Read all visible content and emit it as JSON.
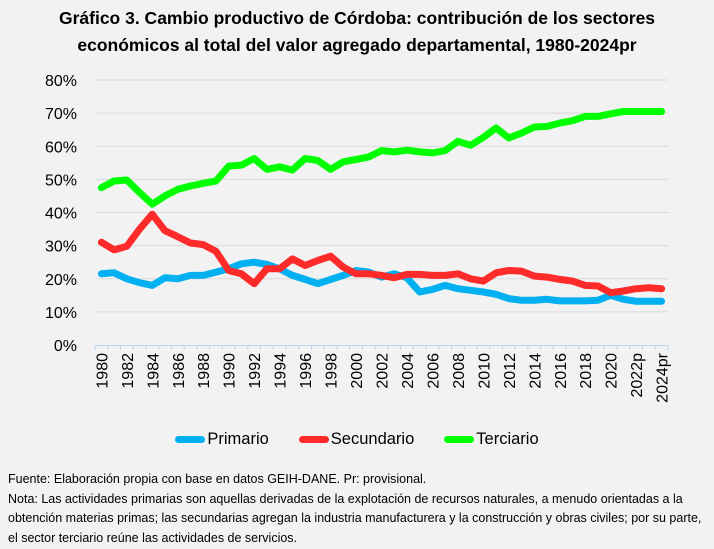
{
  "chart_data": {
    "type": "line",
    "title_line1": "Gráfico 3. Cambio productivo de Córdoba: contribución de los sectores",
    "title_line2": "económicos al total del valor agregado departamental, 1980-2024pr",
    "xlabel": "",
    "ylabel": "",
    "ylim": [
      0,
      80
    ],
    "y_ticks": [
      "0%",
      "10%",
      "20%",
      "30%",
      "40%",
      "50%",
      "60%",
      "70%",
      "80%"
    ],
    "y_tick_values": [
      0,
      10,
      20,
      30,
      40,
      50,
      60,
      70,
      80
    ],
    "grid": true,
    "legend_position": "bottom",
    "x": [
      "1980",
      "1981",
      "1982",
      "1983",
      "1984",
      "1985",
      "1986",
      "1987",
      "1988",
      "1989",
      "1990",
      "1991",
      "1992",
      "1993",
      "1994",
      "1995",
      "1996",
      "1997",
      "1998",
      "1999",
      "2000",
      "2001",
      "2002",
      "2003",
      "2004",
      "2005",
      "2006",
      "2007",
      "2008",
      "2009",
      "2010",
      "2011",
      "2012",
      "2013",
      "2014",
      "2015",
      "2016",
      "2017",
      "2018",
      "2019",
      "2020",
      "2021",
      "2022p",
      "2023",
      "2024pr"
    ],
    "x_tick_labels": [
      "1980",
      "1982",
      "1984",
      "1986",
      "1988",
      "1990",
      "1992",
      "1994",
      "1996",
      "1998",
      "2000",
      "2002",
      "2004",
      "2006",
      "2008",
      "2010",
      "2012",
      "2014",
      "2016",
      "2018",
      "2020",
      "2022p",
      "2024pr"
    ],
    "series": [
      {
        "name": "Primario",
        "color": "#00b0f0",
        "values": [
          21.5,
          21.8,
          20.0,
          18.8,
          18.0,
          20.3,
          20.0,
          21.0,
          21.0,
          22.0,
          23.0,
          24.5,
          25.0,
          24.3,
          23.0,
          21.0,
          19.8,
          18.5,
          19.8,
          21.0,
          22.5,
          22.0,
          20.5,
          21.5,
          20.3,
          16.0,
          16.8,
          18.0,
          17.0,
          16.5,
          16.0,
          15.3,
          14.0,
          13.5,
          13.5,
          13.8,
          13.3,
          13.3,
          13.3,
          13.5,
          15.0,
          13.8,
          13.2,
          13.2,
          13.2
        ]
      },
      {
        "name": "Secundario",
        "color": "#ff2a2a",
        "values": [
          31.0,
          28.7,
          29.8,
          35.0,
          39.5,
          34.5,
          32.7,
          30.8,
          30.3,
          28.3,
          22.5,
          21.5,
          18.5,
          23.0,
          23.0,
          26.0,
          24.0,
          25.5,
          26.8,
          23.5,
          21.5,
          21.5,
          21.0,
          20.3,
          21.3,
          21.3,
          21.0,
          21.0,
          21.5,
          20.0,
          19.3,
          21.8,
          22.5,
          22.3,
          20.8,
          20.5,
          19.8,
          19.3,
          18.0,
          17.8,
          15.8,
          16.3,
          17.0,
          17.3,
          17.0
        ]
      },
      {
        "name": "Terciario",
        "color": "#00ff00",
        "values": [
          47.5,
          49.5,
          49.8,
          46.0,
          42.5,
          45.0,
          47.0,
          48.0,
          48.8,
          49.5,
          54.0,
          54.3,
          56.3,
          53.0,
          53.8,
          52.8,
          56.3,
          55.7,
          53.0,
          55.3,
          56.0,
          56.8,
          58.7,
          58.3,
          58.8,
          58.3,
          58.0,
          58.7,
          61.5,
          60.3,
          62.7,
          65.5,
          62.5,
          64.0,
          65.8,
          66.0,
          67.0,
          67.7,
          69.0,
          69.0,
          69.8,
          70.5,
          70.5,
          70.5,
          70.5
        ]
      }
    ]
  },
  "legend": {
    "items": [
      {
        "label": "Primario",
        "color": "#00b0f0"
      },
      {
        "label": "Secundario",
        "color": "#ff2a2a"
      },
      {
        "label": "Terciario",
        "color": "#00ff00"
      }
    ]
  },
  "notes": {
    "source": "Fuente: Elaboración propia con base en datos GEIH-DANE. Pr: provisional.",
    "note": "Nota: Las actividades primarias son aquellas derivadas de la explotación de recursos naturales, a menudo orientadas a la obtención materias primas; las secundarias agregan la industria manufacturera y la construcción y obras civiles; por su parte, el sector terciario reúne las actividades de servicios."
  }
}
